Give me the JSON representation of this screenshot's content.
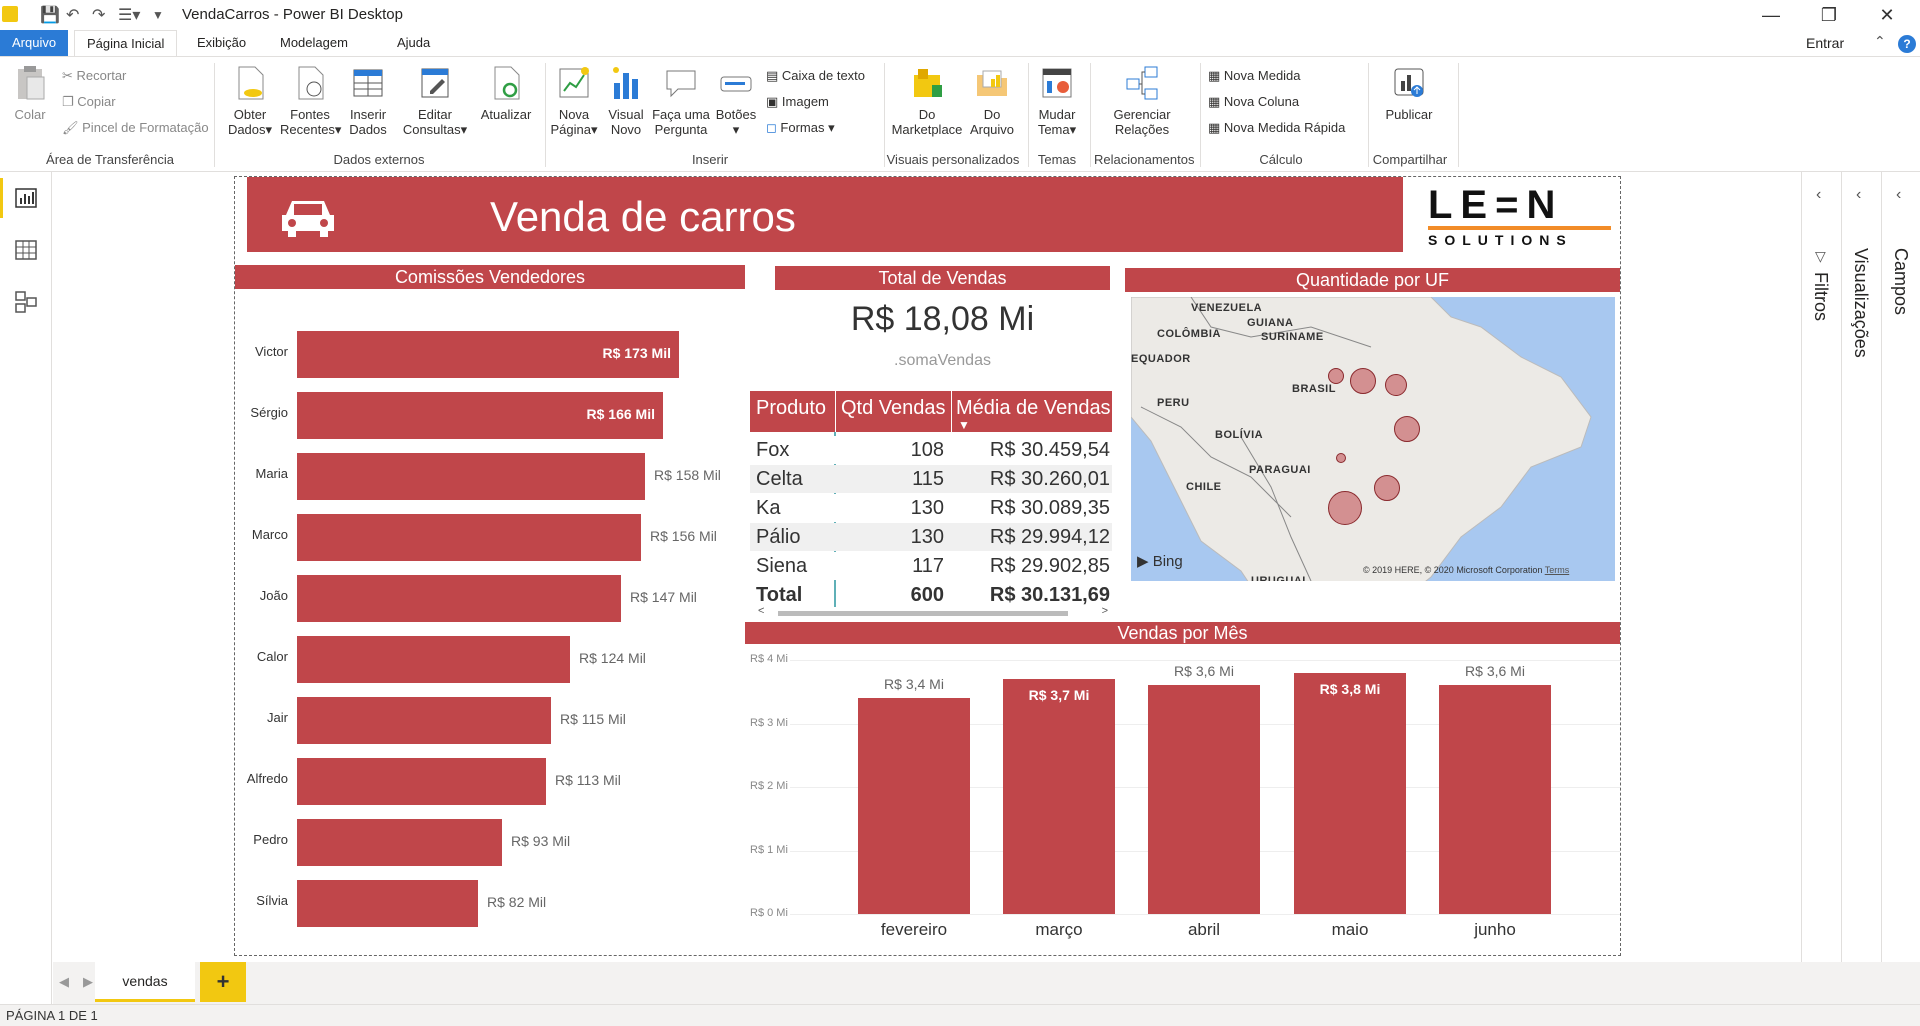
{
  "window": {
    "title": "VendaCarros - Power BI Desktop"
  },
  "menu": {
    "tabs": [
      "Arquivo",
      "Página Inicial",
      "Exibição",
      "Modelagem",
      "Ajuda"
    ],
    "signin": "Entrar"
  },
  "ribbon": {
    "clipboard": {
      "paste": "Colar",
      "cut": "Recortar",
      "copy": "Copiar",
      "format_painter": "Pincel de Formatação",
      "group": "Área de Transferência"
    },
    "external": {
      "get_data": [
        "Obter",
        "Dados"
      ],
      "recent": [
        "Fontes",
        "Recentes"
      ],
      "enter": [
        "Inserir",
        "Dados"
      ],
      "edit": [
        "Editar",
        "Consultas"
      ],
      "refresh": "Atualizar",
      "group": "Dados externos"
    },
    "insert": {
      "new_page": [
        "Nova",
        "Página"
      ],
      "new_visual": [
        "Visual",
        "Novo"
      ],
      "ask": [
        "Faça uma",
        "Pergunta"
      ],
      "buttons": "Botões",
      "textbox": "Caixa de texto",
      "image": "Imagem",
      "shapes": "Formas",
      "group": "Inserir"
    },
    "custom": {
      "market": [
        "Do",
        "Marketplace"
      ],
      "file": [
        "Do",
        "Arquivo"
      ],
      "group": "Visuais personalizados"
    },
    "themes": {
      "switch": [
        "Mudar",
        "Tema"
      ],
      "group": "Temas"
    },
    "rel": {
      "manage": [
        "Gerenciar",
        "Relações"
      ],
      "group": "Relacionamentos"
    },
    "calc": {
      "measure": "Nova Medida",
      "column": "Nova Coluna",
      "quick": "Nova Medida Rápida",
      "group": "Cálculo"
    },
    "share": {
      "publish": "Publicar",
      "group": "Compartilhar"
    }
  },
  "report": {
    "title": "Venda de carros",
    "logo": {
      "top": "LE=N",
      "bottom": "SOLUTIONS"
    },
    "commissions": {
      "title": "Comissões Vendedores",
      "items": [
        {
          "name": "Victor",
          "value": 173,
          "label": "R$ 173 Mil"
        },
        {
          "name": "Sérgio",
          "value": 166,
          "label": "R$ 166 Mil"
        },
        {
          "name": "Maria",
          "value": 158,
          "label": "R$ 158 Mil"
        },
        {
          "name": "Marco",
          "value": 156,
          "label": "R$ 156 Mil"
        },
        {
          "name": "João",
          "value": 147,
          "label": "R$ 147 Mil"
        },
        {
          "name": "Calor",
          "value": 124,
          "label": "R$ 124 Mil"
        },
        {
          "name": "Jair",
          "value": 115,
          "label": "R$ 115 Mil"
        },
        {
          "name": "Alfredo",
          "value": 113,
          "label": "R$ 113 Mil"
        },
        {
          "name": "Pedro",
          "value": 93,
          "label": "R$ 93 Mil"
        },
        {
          "name": "Sílvia",
          "value": 82,
          "label": "R$ 82 Mil"
        }
      ]
    },
    "total": {
      "title": "Total de Vendas",
      "value": "R$ 18,08 Mi",
      "caption": ".somaVendas"
    },
    "table": {
      "headers": [
        "Produto",
        "Qtd Vendas",
        "Média de Vendas"
      ],
      "rows": [
        [
          "Fox",
          "108",
          "R$ 30.459,54"
        ],
        [
          "Celta",
          "115",
          "R$ 30.260,01"
        ],
        [
          "Ka",
          "130",
          "R$ 30.089,35"
        ],
        [
          "Pálio",
          "130",
          "R$ 29.994,12"
        ],
        [
          "Siena",
          "117",
          "R$ 29.902,85"
        ]
      ],
      "total": [
        "Total",
        "600",
        "R$ 30.131,69"
      ]
    },
    "map": {
      "title": "Quantidade por UF",
      "labels": [
        "VENEZUELA",
        "GUIANA",
        "SURINAME",
        "COLÔMBIA",
        "EQUADOR",
        "PERU",
        "BRASIL",
        "BOLÍVIA",
        "PARAGUAI",
        "CHILE",
        "URUGUAI"
      ],
      "bing": "Bing",
      "copyright": "© 2019 HERE, © 2020 Microsoft Corporation",
      "terms": "Terms"
    },
    "monthly": {
      "title": "Vendas por Mês"
    }
  },
  "chart_data": {
    "type": "bar",
    "title": "Vendas por Mês",
    "categories": [
      "fevereiro",
      "março",
      "abril",
      "maio",
      "junho"
    ],
    "values": [
      3.4,
      3.7,
      3.6,
      3.8,
      3.6
    ],
    "labels": [
      "R$ 3,4 Mi",
      "R$ 3,7 Mi",
      "R$ 3,6 Mi",
      "R$ 3,8 Mi",
      "R$ 3,6 Mi"
    ],
    "yticks": [
      "R$ 4 Mi",
      "R$ 3 Mi",
      "R$ 2 Mi",
      "R$ 1 Mi",
      "R$ 0 Mi"
    ],
    "ylim": [
      0,
      4
    ]
  },
  "panes": {
    "filters": "Filtros",
    "visualizations": "Visualizações",
    "fields": "Campos"
  },
  "tabs": {
    "page": "vendas",
    "add": "+"
  },
  "status": "PÁGINA 1 DE 1"
}
